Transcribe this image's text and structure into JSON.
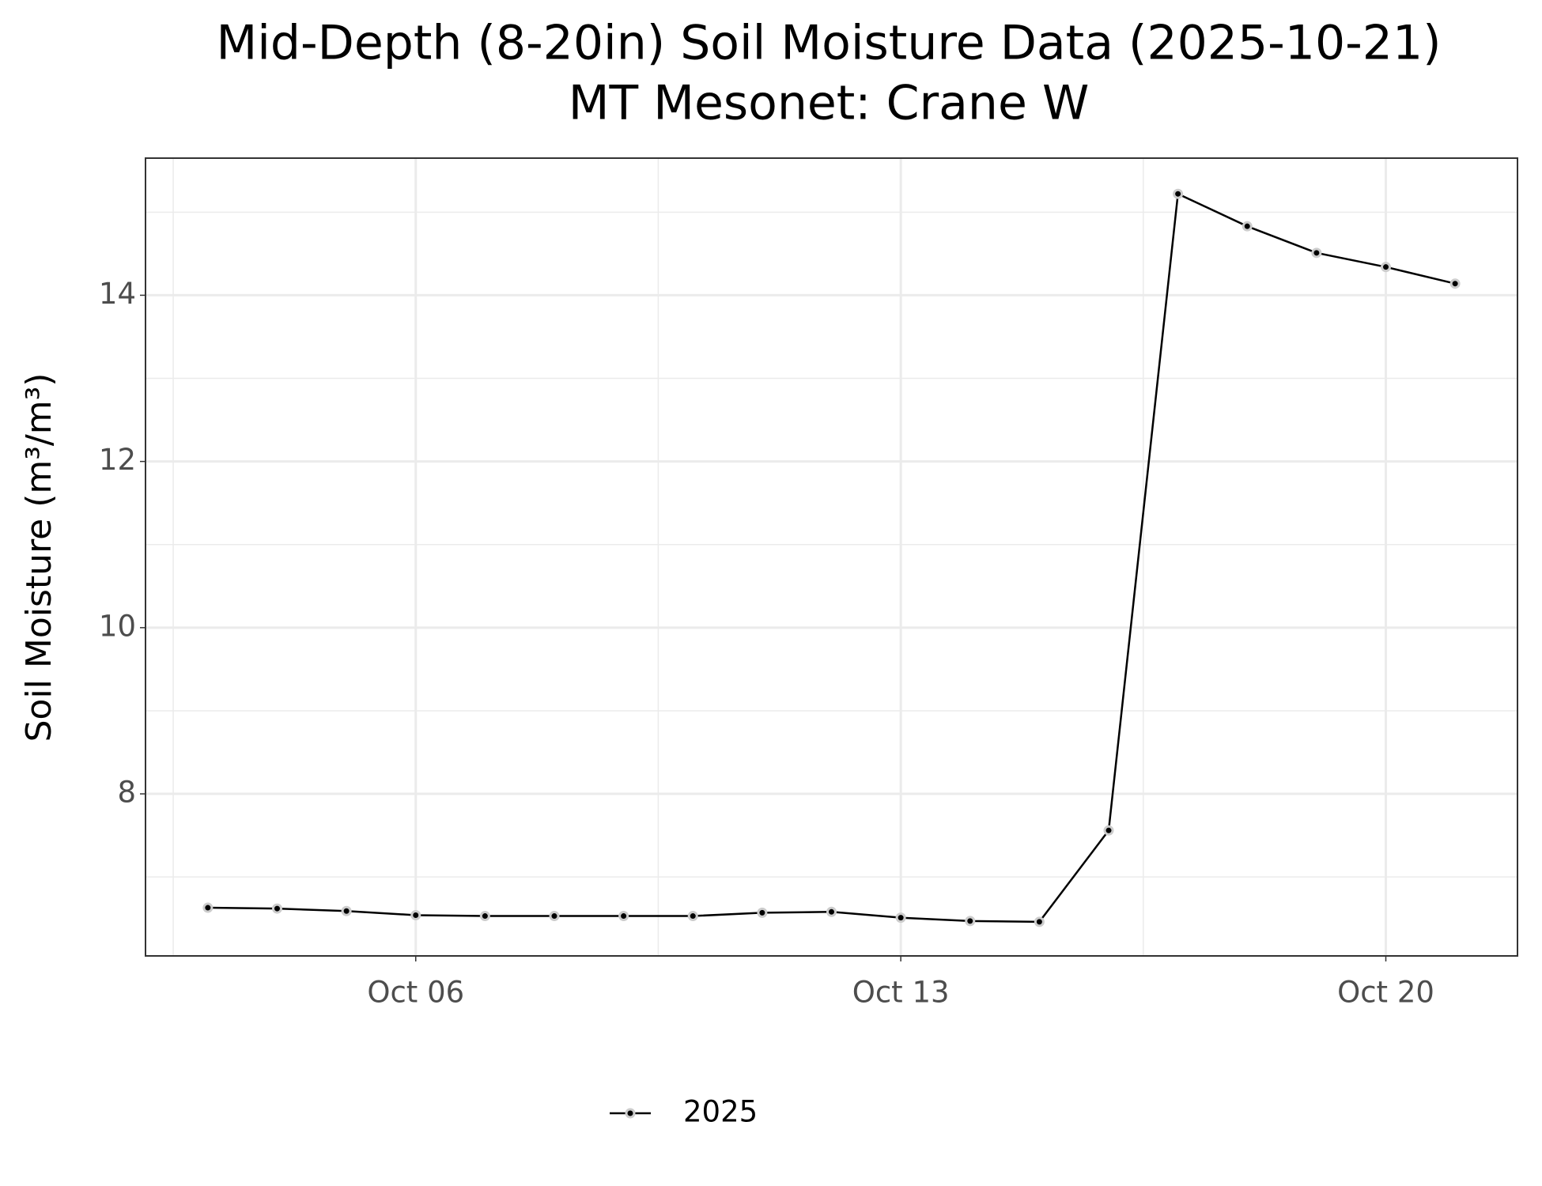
{
  "chart_data": {
    "type": "line",
    "title": "Mid-Depth (8-20in) Soil Moisture Data (2025-10-21)",
    "subtitle": "MT Mesonet: Crane W",
    "y_label": "Soil Moisture (m³/m³)",
    "x": [
      "Oct 03",
      "Oct 04",
      "Oct 05",
      "Oct 06",
      "Oct 07",
      "Oct 08",
      "Oct 09",
      "Oct 10",
      "Oct 11",
      "Oct 12",
      "Oct 13",
      "Oct 14",
      "Oct 15",
      "Oct 16",
      "Oct 17",
      "Oct 18",
      "Oct 19",
      "Oct 20",
      "Oct 21"
    ],
    "xticks": [
      "Oct 06",
      "Oct 13",
      "Oct 20"
    ],
    "series": [
      {
        "name": "2025",
        "color": "#000000",
        "values": [
          6.63,
          6.62,
          6.59,
          6.54,
          6.53,
          6.53,
          6.53,
          6.53,
          6.57,
          6.58,
          6.51,
          6.47,
          6.46,
          7.56,
          15.22,
          14.83,
          14.51,
          14.34,
          14.14
        ]
      }
    ],
    "ylim": [
      6.05,
      15.65
    ],
    "yticks": [
      8,
      10,
      12,
      14
    ],
    "grid": true,
    "legend": "bottom"
  }
}
